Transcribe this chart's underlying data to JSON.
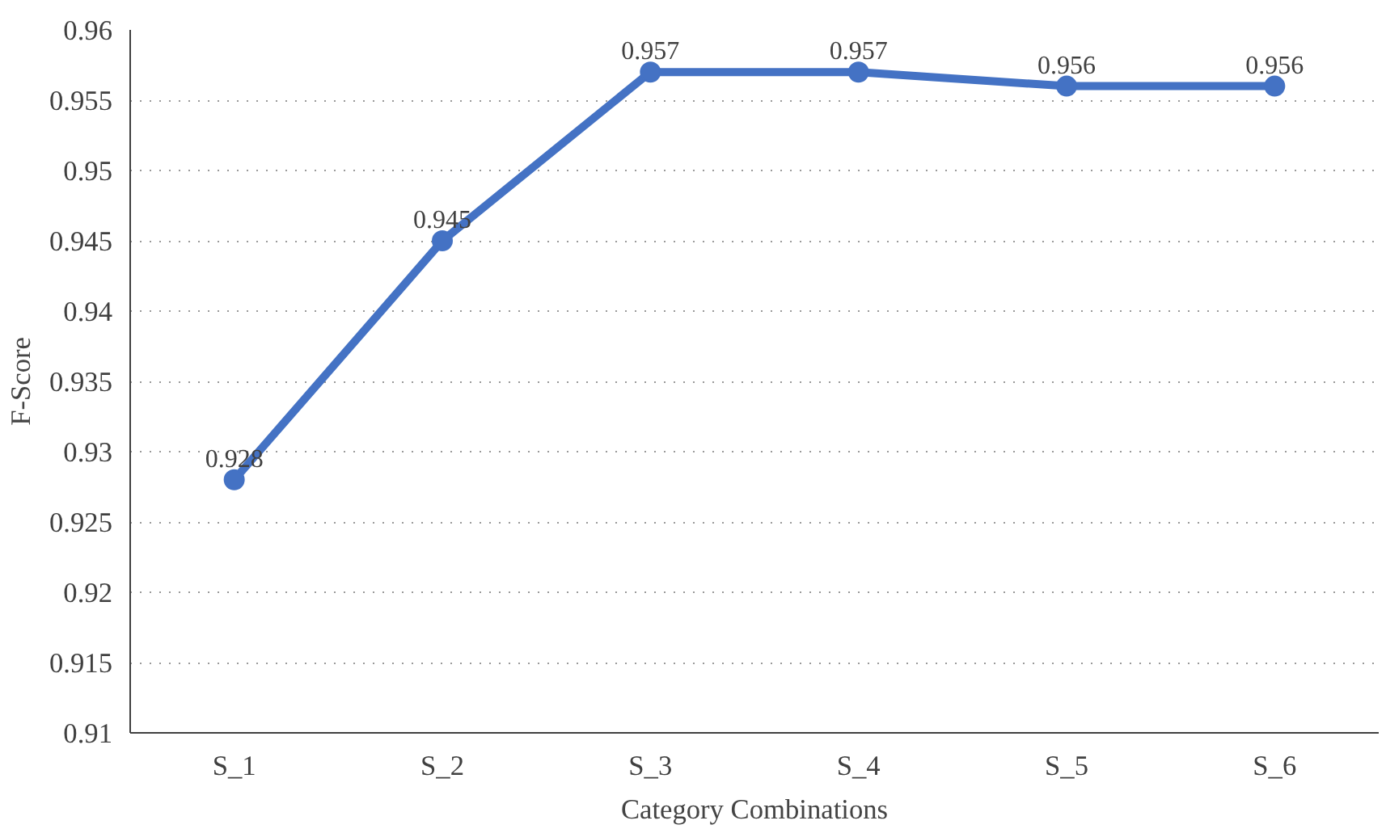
{
  "chart_data": {
    "type": "line",
    "xlabel": "Category Combinations",
    "ylabel": "F-Score",
    "categories": [
      "S_1",
      "S_2",
      "S_3",
      "S_4",
      "S_5",
      "S_6"
    ],
    "series": [
      {
        "color": "#4472c4",
        "values": [
          0.928,
          0.945,
          0.957,
          0.957,
          0.956,
          0.956
        ]
      }
    ],
    "ylim": [
      0.91,
      0.96
    ],
    "yticks": [
      0.91,
      0.915,
      0.92,
      0.925,
      0.93,
      0.935,
      0.94,
      0.945,
      0.95,
      0.955,
      0.96
    ],
    "grid": "y",
    "marker": "circle",
    "line_style": "solid",
    "data_labels": true
  }
}
